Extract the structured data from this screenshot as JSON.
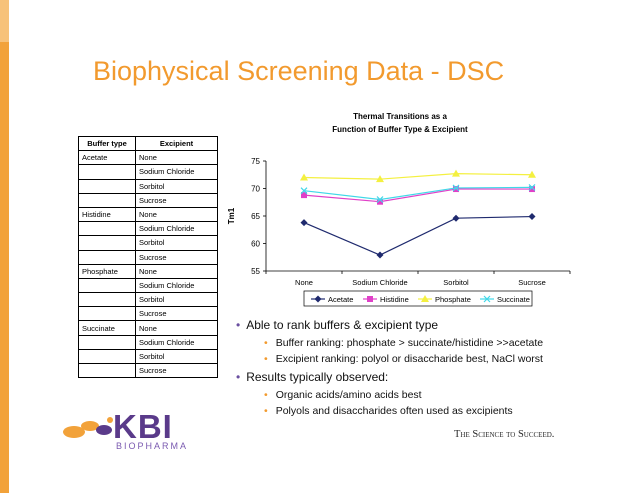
{
  "slide": {
    "title": "Biophysical Screening Data - DSC"
  },
  "table": {
    "headers": [
      "Buffer type",
      "Excipient"
    ],
    "rows": [
      [
        "Acetate",
        "None"
      ],
      [
        "",
        "Sodium Chloride"
      ],
      [
        "",
        "Sorbitol"
      ],
      [
        "",
        "Sucrose"
      ],
      [
        "Histidine",
        "None"
      ],
      [
        "",
        "Sodium Chloride"
      ],
      [
        "",
        "Sorbitol"
      ],
      [
        "",
        "Sucrose"
      ],
      [
        "Phosphate",
        "None"
      ],
      [
        "",
        "Sodium Chloride"
      ],
      [
        "",
        "Sorbitol"
      ],
      [
        "",
        "Sucrose"
      ],
      [
        "Succinate",
        "None"
      ],
      [
        "",
        "Sodium Chloride"
      ],
      [
        "",
        "Sorbitol"
      ],
      [
        "",
        "Sucrose"
      ]
    ]
  },
  "chart_data": {
    "type": "line",
    "title_line1": "Thermal Transitions as a",
    "title_line2": "Function of Buffer Type & Excipient",
    "ylabel": "Tm1",
    "xlabel": "",
    "categories": [
      "None",
      "Sodium Chloride",
      "Sorbitol",
      "Sucrose"
    ],
    "ylim": [
      55,
      75
    ],
    "yticks": [
      55,
      60,
      65,
      70,
      75
    ],
    "grid": false,
    "legend_position": "bottom",
    "series": [
      {
        "name": "Acetate",
        "values": [
          63.8,
          57.9,
          64.6,
          64.9
        ],
        "color": "#1f2a6e",
        "marker": "diamond"
      },
      {
        "name": "Histidine",
        "values": [
          68.8,
          67.6,
          69.9,
          69.9
        ],
        "color": "#e040c8",
        "marker": "square"
      },
      {
        "name": "Phosphate",
        "values": [
          72.0,
          71.7,
          72.7,
          72.5
        ],
        "color": "#f4f040",
        "marker": "triangle"
      },
      {
        "name": "Succinate",
        "values": [
          69.6,
          68.0,
          70.1,
          70.2
        ],
        "color": "#40d8e8",
        "marker": "x"
      }
    ]
  },
  "bullets": [
    {
      "text": "Able to rank buffers & excipient type",
      "sub": [
        "Buffer ranking: phosphate > succinate/histidine >>acetate",
        "Excipient ranking: polyol or disaccharide best, NaCl worst"
      ]
    },
    {
      "text": "Results typically observed:",
      "sub": [
        "Organic acids/amino acids best",
        "Polyols and disaccharides often used as excipients"
      ]
    }
  ],
  "footer": {
    "logo_text": "KBI",
    "logo_sub": "BIOPHARMA",
    "slogan": "The Science to Succeed."
  },
  "colors": {
    "accent": "#f29a2e",
    "brand": "#5a3a8a"
  }
}
